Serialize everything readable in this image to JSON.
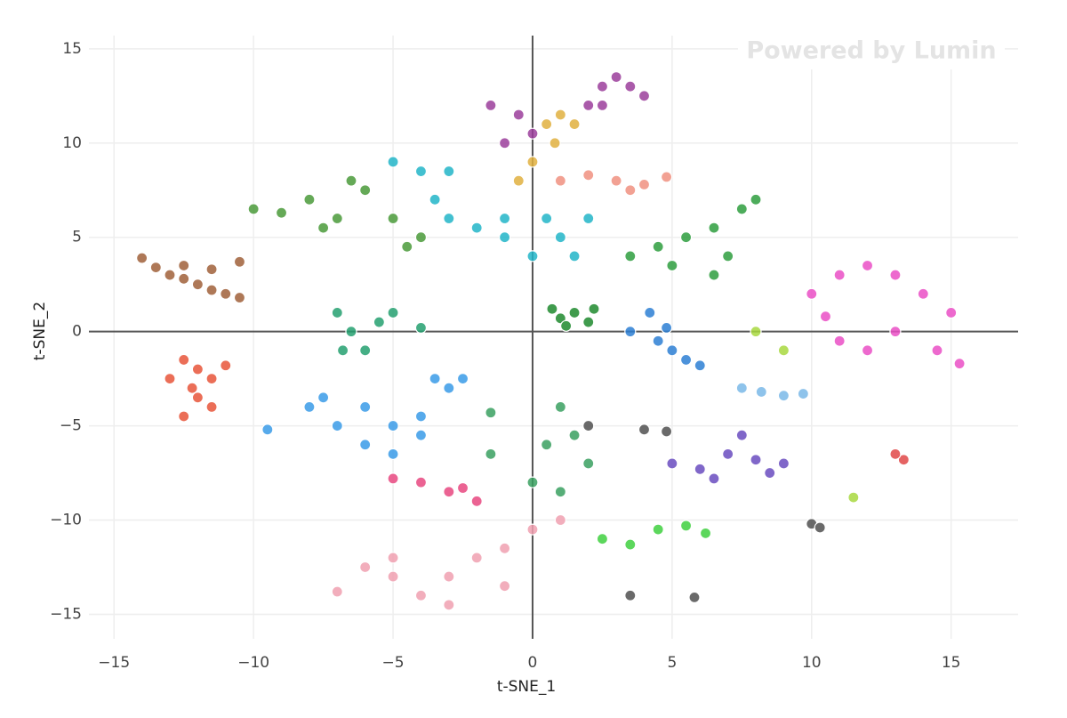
{
  "chart_data": {
    "type": "scatter",
    "watermark": "Powered by Lumin",
    "x_label": "t-SNE_1",
    "y_label": "t-SNE_2",
    "xlim": [
      -15.9,
      17.4
    ],
    "ylim": [
      -16.3,
      15.7
    ],
    "grid": true,
    "xticks": [
      {
        "value": -15,
        "label": "−15"
      },
      {
        "value": -10,
        "label": "−10"
      },
      {
        "value": -5,
        "label": "−5"
      },
      0,
      5,
      10,
      15
    ],
    "yticks": [
      {
        "value": -15,
        "label": "−15"
      },
      {
        "value": -10,
        "label": "−10"
      },
      {
        "value": -5,
        "label": "−5"
      },
      0,
      5,
      10,
      15
    ],
    "series": [
      {
        "color": "#a0603a",
        "x": [
          -14,
          -13.5,
          -13,
          -12.5,
          -12,
          -11.5,
          -11,
          -10.5,
          -10.5,
          -11.5,
          -12.5
        ],
        "y": [
          3.9,
          3.4,
          3,
          2.8,
          2.5,
          2.2,
          2,
          1.8,
          3.7,
          3.3,
          3.5
        ]
      },
      {
        "color": "#e8553a",
        "x": [
          -13,
          -12.5,
          -12,
          -11.5,
          -12,
          -12.5,
          -11.5,
          -11,
          -12.2
        ],
        "y": [
          -2.5,
          -1.5,
          -2,
          -2.5,
          -3.5,
          -4.5,
          -4,
          -1.8,
          -3
        ]
      },
      {
        "color": "#4a9a3a",
        "x": [
          -10,
          -9,
          -8,
          -7,
          -6,
          -5,
          -4,
          -4.5,
          -7.5,
          -6.5
        ],
        "y": [
          6.5,
          6.3,
          7,
          6,
          7.5,
          6,
          5,
          4.5,
          5.5,
          8
        ]
      },
      {
        "color": "#22b5c8",
        "x": [
          -5,
          -4,
          -3.5,
          -3,
          -2,
          -1,
          0,
          1,
          1.5,
          -1,
          0.5,
          2,
          -3
        ],
        "y": [
          9,
          8.5,
          7,
          6,
          5.5,
          5,
          4,
          5,
          4,
          6,
          6,
          6,
          8.5
        ]
      },
      {
        "color": "#9b3e9b",
        "x": [
          -1.5,
          -0.5,
          0,
          -1,
          2,
          2.5,
          3,
          3.5,
          4,
          2.5
        ],
        "y": [
          12,
          11.5,
          10.5,
          10,
          12,
          13,
          13.5,
          13,
          12.5,
          12
        ]
      },
      {
        "color": "#e0b040",
        "x": [
          0.5,
          1,
          1.5,
          0,
          -0.5,
          0.8
        ],
        "y": [
          11,
          11.5,
          11,
          9,
          8,
          10
        ]
      },
      {
        "color": "#f09080",
        "x": [
          1,
          2,
          3,
          4,
          4.8,
          3.5
        ],
        "y": [
          8,
          8.3,
          8,
          7.8,
          8.2,
          7.5
        ]
      },
      {
        "color": "#2e9e3e",
        "x": [
          3.5,
          4.5,
          5.5,
          6.5,
          7.5,
          8,
          5,
          6.5,
          7
        ],
        "y": [
          4,
          4.5,
          5,
          5.5,
          6.5,
          7,
          3.5,
          3,
          4
        ]
      },
      {
        "color": "#1f8a2e",
        "x": [
          0.7,
          1,
          1.5,
          2,
          2.2,
          1.2
        ],
        "y": [
          1.2,
          0.7,
          1,
          0.5,
          1.2,
          0.3
        ]
      },
      {
        "color": "#ea4fc6",
        "x": [
          10,
          11,
          12,
          13,
          14,
          15,
          13,
          12,
          11,
          10.5,
          14.5,
          15.3
        ],
        "y": [
          2,
          3,
          3.5,
          3,
          2,
          1,
          0,
          -1,
          -0.5,
          0.8,
          -1,
          -1.7
        ]
      },
      {
        "color": "#2d7fd4",
        "x": [
          3.5,
          4.2,
          4.5,
          5,
          5.5,
          6,
          4.8
        ],
        "y": [
          0,
          1,
          -0.5,
          -1,
          -1.5,
          -1.8,
          0.2
        ]
      },
      {
        "color": "#3a9be8",
        "x": [
          -7,
          -6,
          -5,
          -4,
          -3,
          -2.5,
          -3.5,
          -6,
          -5,
          -4,
          -9.5,
          -8,
          -7.5
        ],
        "y": [
          -5,
          -4,
          -5,
          -4.5,
          -3,
          -2.5,
          -2.5,
          -6,
          -6.5,
          -5.5,
          -5.2,
          -4,
          -3.5
        ]
      },
      {
        "color": "#25a070",
        "x": [
          -7,
          -6.5,
          -6,
          -5.5,
          -5,
          -4,
          -6.8
        ],
        "y": [
          1,
          0,
          -1,
          0.5,
          1,
          0.2,
          -1
        ]
      },
      {
        "color": "#6a4cc0",
        "x": [
          5,
          6,
          7,
          8,
          9,
          7.5,
          8.5,
          6.5
        ],
        "y": [
          -7,
          -7.3,
          -6.5,
          -6.8,
          -7,
          -5.5,
          -7.5,
          -7.8
        ]
      },
      {
        "color": "#f0a0b0",
        "x": [
          -7,
          -6,
          -5,
          -4,
          -3,
          -2,
          -1,
          0,
          -1,
          -3,
          -5,
          1
        ],
        "y": [
          -13.8,
          -12.5,
          -13,
          -14,
          -13,
          -12,
          -11.5,
          -10.5,
          -13.5,
          -14.5,
          -12,
          -10
        ]
      },
      {
        "color": "#e84880",
        "x": [
          -5,
          -4,
          -3,
          -2,
          -2.5
        ],
        "y": [
          -7.8,
          -8,
          -8.5,
          -9,
          -8.3
        ]
      },
      {
        "color": "#40d040",
        "x": [
          2.5,
          3.5,
          4.5,
          5.5,
          6.2
        ],
        "y": [
          -11,
          -11.3,
          -10.5,
          -10.3,
          -10.7
        ]
      },
      {
        "color": "#505050",
        "x": [
          10,
          10.3,
          4.8,
          4,
          2,
          5.8,
          3.5
        ],
        "y": [
          -10.2,
          -10.4,
          -5.3,
          -5.2,
          -5,
          -14.1,
          -14
        ]
      },
      {
        "color": "#7ab8e8",
        "x": [
          7.5,
          8.2,
          9,
          9.7
        ],
        "y": [
          -3,
          -3.2,
          -3.4,
          -3.3
        ]
      },
      {
        "color": "#3aa060",
        "x": [
          1,
          0.5,
          1.5,
          2,
          -1.5,
          0,
          -1.5,
          1
        ],
        "y": [
          -4,
          -6,
          -5.5,
          -7,
          -6.5,
          -8,
          -4.3,
          -8.5
        ]
      },
      {
        "color": "#e04848",
        "x": [
          13.3,
          13
        ],
        "y": [
          -6.8,
          -6.5
        ]
      },
      {
        "color": "#a8d840",
        "x": [
          8,
          9,
          11.5
        ],
        "y": [
          0,
          -1,
          -8.8
        ]
      }
    ]
  }
}
